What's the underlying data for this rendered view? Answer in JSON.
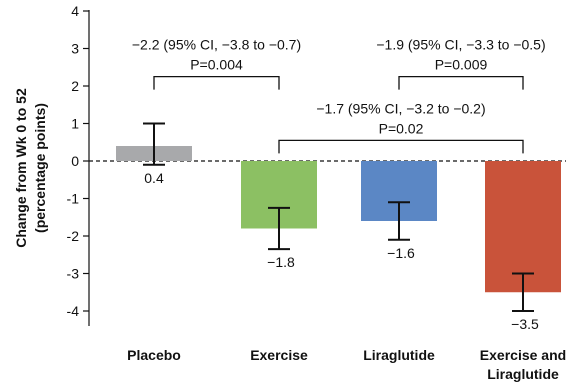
{
  "chart_data": {
    "type": "bar",
    "categories": [
      "Placebo",
      "Exercise",
      "Liraglutide",
      "Exercise and\nLiraglutide"
    ],
    "values": [
      0.4,
      -1.8,
      -1.6,
      -3.5
    ],
    "value_labels": [
      "0.4",
      "−1.8",
      "−1.6",
      "−3.5"
    ],
    "error_low": [
      -0.1,
      -2.35,
      -2.1,
      -4.0
    ],
    "error_high": [
      1.0,
      -1.25,
      -1.1,
      -3.0
    ],
    "colors": [
      "#a8a9ab",
      "#8cc063",
      "#5b87c5",
      "#c9533a"
    ],
    "ylabel_line1": "Change from Wk 0 to 52",
    "ylabel_line2": "(percentage points)",
    "ylim": [
      -4.4,
      4.2
    ],
    "yticks": [
      4,
      3,
      2,
      1,
      0,
      -1,
      -2,
      -3,
      -4
    ],
    "ytick_labels": [
      "4",
      "3",
      "2",
      "1",
      "0",
      "-1",
      "-2",
      "-3",
      "-4"
    ],
    "zero_line": "dashed",
    "comparisons": [
      {
        "from": 0,
        "to": 1,
        "line1": "−2.2 (95% CI, −3.8 to −0.7)",
        "line2": "P=0.004",
        "bracket_y": 2.25
      },
      {
        "from": 2,
        "to": 3,
        "line1": "−1.9 (95% CI, −3.3 to −0.5)",
        "line2": "P=0.009",
        "bracket_y": 2.25
      },
      {
        "from": 1,
        "to": 3,
        "line1": "−1.7 (95% CI, −3.2 to −0.2)",
        "line2": "P=0.02",
        "bracket_y": 0.55
      }
    ]
  }
}
